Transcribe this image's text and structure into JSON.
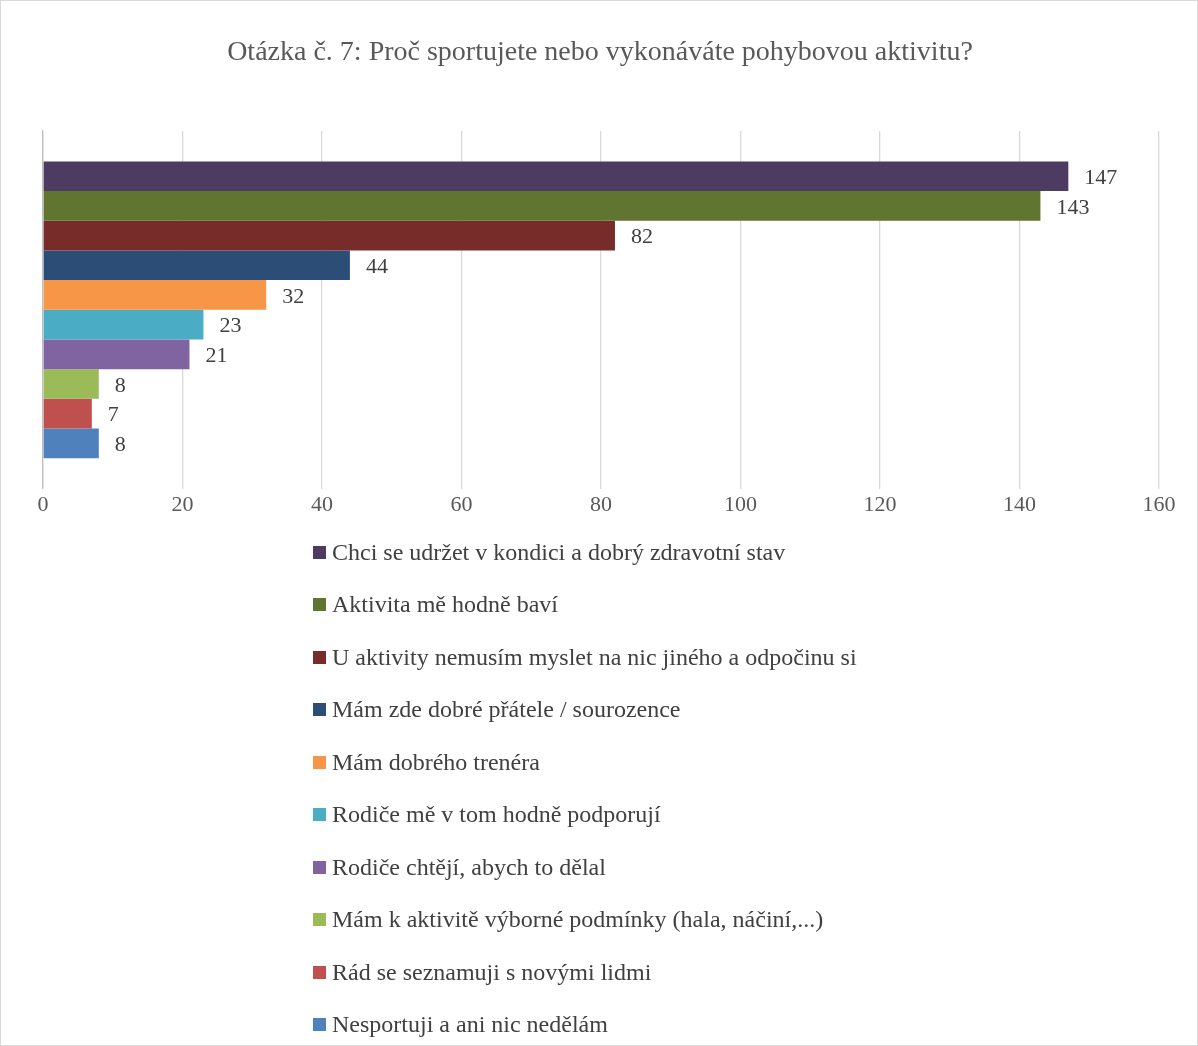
{
  "chart_data": {
    "type": "bar",
    "title": "Otázka č. 7: Proč sportujete nebo vykonáváte pohybovou aktivitu?",
    "orientation": "horizontal",
    "categories": [
      null
    ],
    "series": [
      {
        "name": "Chci se udržet v kondici a dobrý zdravotní stav",
        "color": "#4d3b62",
        "values": [
          147
        ]
      },
      {
        "name": "Aktivita mě hodně baví",
        "color": "#5f7530",
        "values": [
          143
        ]
      },
      {
        "name": "U aktivity nemusím myslet na nic jiného a odpočinu si",
        "color": "#772c2a",
        "values": [
          82
        ]
      },
      {
        "name": "Mám zde dobré přátele / sourozence",
        "color": "#2c4d75",
        "values": [
          44
        ]
      },
      {
        "name": "Mám dobrého trenéra",
        "color": "#f79646",
        "values": [
          32
        ]
      },
      {
        "name": "Rodiče mě v tom hodně podporují",
        "color": "#4bacc6",
        "values": [
          23
        ]
      },
      {
        "name": "Rodiče chtějí, abych to dělal",
        "color": "#8064a2",
        "values": [
          21
        ]
      },
      {
        "name": "Mám k aktivitě výborné podmínky (hala, náčiní,...)",
        "color": "#9bbb59",
        "values": [
          8
        ]
      },
      {
        "name": "Rád se seznamuji s novými lidmi",
        "color": "#c0504d",
        "values": [
          7
        ]
      },
      {
        "name": "Nesportuji a ani nic nedělám",
        "color": "#4f81bd",
        "values": [
          8
        ]
      }
    ],
    "xlim": [
      0,
      160
    ],
    "xticks": [
      0,
      20,
      40,
      60,
      80,
      100,
      120,
      140,
      160
    ],
    "grid": "x",
    "legend": "bottom",
    "data_labels": true
  }
}
